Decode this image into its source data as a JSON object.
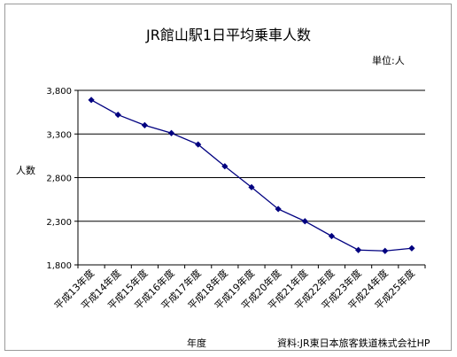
{
  "chart_data": {
    "type": "line",
    "title": "JR館山駅1日平均乗車人数",
    "unit_label": "単位:人",
    "xlabel": "年度",
    "ylabel": "人数",
    "source": "資料:JR東日本旅客鉄道株式会社HP",
    "categories": [
      "平成13年度",
      "平成14年度",
      "平成15年度",
      "平成16年度",
      "平成17年度",
      "平成18年度",
      "平成19年度",
      "平成20年度",
      "平成21年度",
      "平成22年度",
      "平成23年度",
      "平成24年度",
      "平成25年度"
    ],
    "series": [
      {
        "values": [
          3690,
          3520,
          3400,
          3310,
          3180,
          2930,
          2690,
          2440,
          2300,
          2130,
          1970,
          1960,
          1990
        ]
      }
    ],
    "ylim": [
      1800,
      3800
    ],
    "yticks": [
      1800,
      2300,
      2800,
      3300,
      3800
    ],
    "ytick_labels": [
      "1,800",
      "2,300",
      "2,800",
      "3,300",
      "3,800"
    ],
    "grid": true,
    "line_color": "#000080",
    "marker_color": "#000080",
    "grid_color": "#000000"
  }
}
